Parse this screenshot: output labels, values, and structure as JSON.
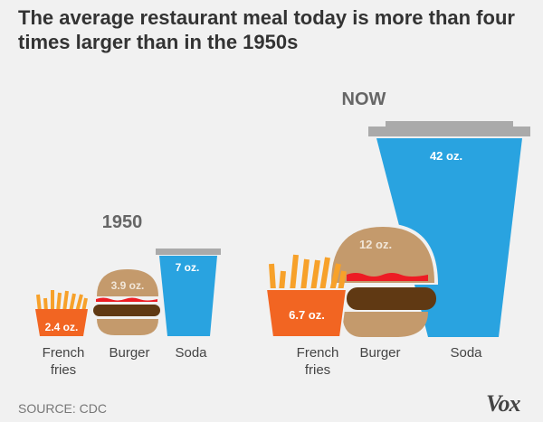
{
  "chart_data": {
    "type": "pictogram",
    "title": "The average restaurant meal today is more than four times larger than in the 1950s",
    "unit": "oz.",
    "groups": [
      {
        "name": "1950",
        "items": [
          {
            "category": "French fries",
            "value": 2.4,
            "label": "2.4 oz."
          },
          {
            "category": "Burger",
            "value": 3.9,
            "label": "3.9 oz."
          },
          {
            "category": "Soda",
            "value": 7,
            "label": "7 oz."
          }
        ]
      },
      {
        "name": "NOW",
        "items": [
          {
            "category": "French fries",
            "value": 6.7,
            "label": "6.7 oz."
          },
          {
            "category": "Burger",
            "value": 12,
            "label": "12 oz."
          },
          {
            "category": "Soda",
            "value": 42,
            "label": "42 oz."
          }
        ]
      }
    ],
    "categories": [
      {
        "line1": "French",
        "line2": "fries"
      },
      {
        "line1": "Burger"
      },
      {
        "line1": "Soda"
      }
    ]
  },
  "source": "SOURCE: CDC",
  "logo": "Vox",
  "colors": {
    "fries": "#f26522",
    "sticks": "#f7a12a",
    "bun": "#c49a6c",
    "patty": "#603913",
    "ketchup": "#ed1c24",
    "soda": "#29a3e0",
    "lid": "#aaaaaa"
  }
}
